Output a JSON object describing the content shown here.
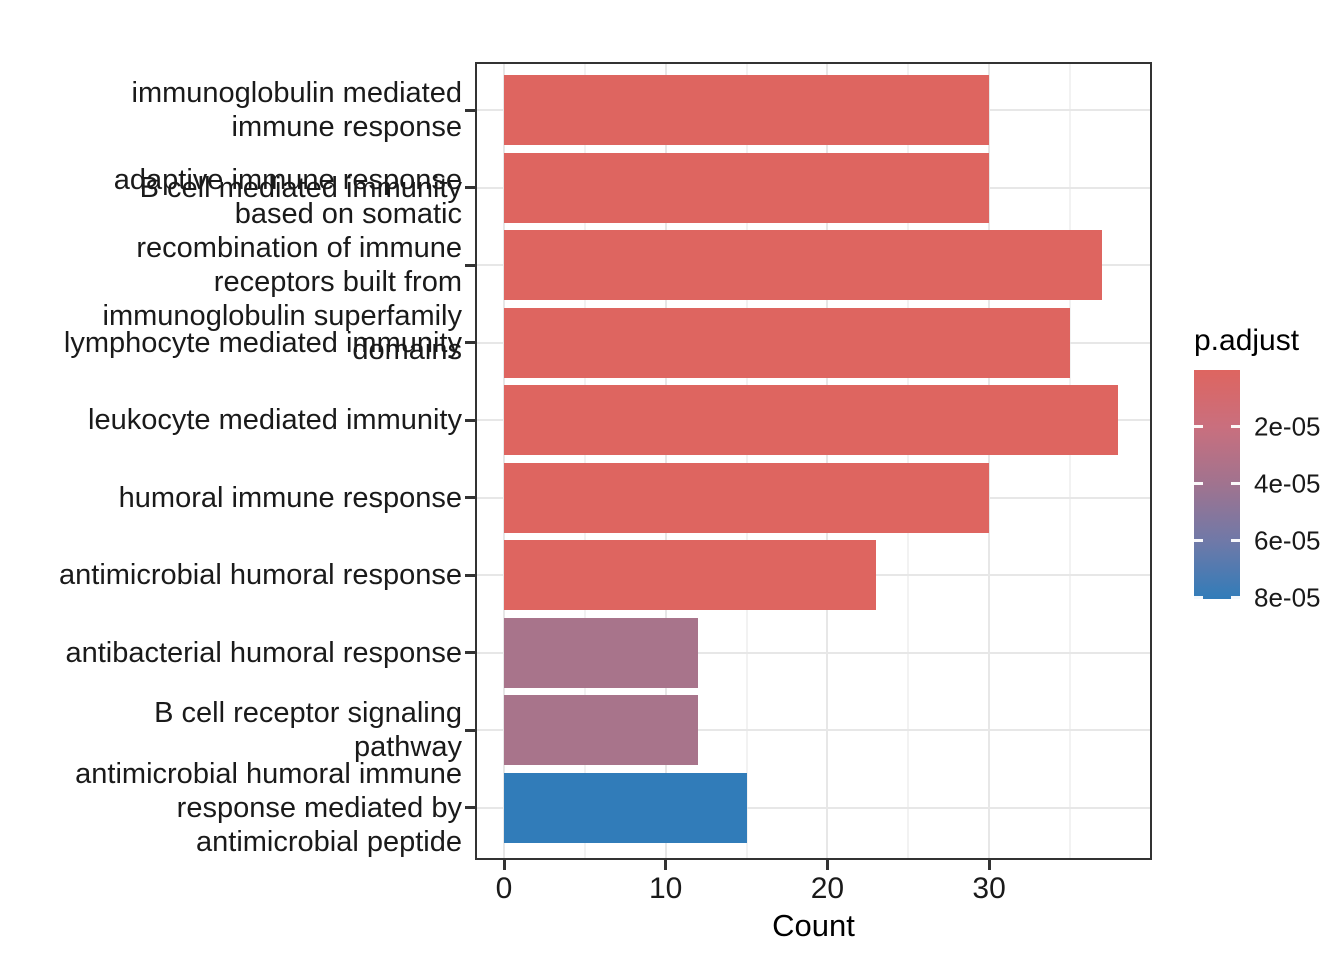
{
  "chart_data": {
    "type": "bar",
    "orientation": "horizontal",
    "title": "",
    "xlabel": "Count",
    "ylabel": "",
    "xlim": [
      0,
      40
    ],
    "x_ticks": [
      0,
      10,
      20,
      30
    ],
    "x_tick_labels": [
      "0",
      "10",
      "20",
      "30"
    ],
    "x_minor_ticks": [
      5,
      15,
      25,
      35
    ],
    "grid": true,
    "categories": [
      "immunoglobulin mediated immune response",
      "B cell mediated immunity",
      "adaptive immune response based on somatic recombination of immune receptors built from immunoglobulin superfamily domains",
      "lymphocyte mediated immunity",
      "leukocyte mediated immunity",
      "humoral immune response",
      "antimicrobial humoral response",
      "antibacterial humoral response",
      "B cell receptor signaling pathway",
      "antimicrobial humoral immune response mediated by antimicrobial peptide"
    ],
    "category_display_lines": [
      [
        "immunoglobulin mediated",
        "immune response"
      ],
      [
        "B cell mediated immunity"
      ],
      [
        "adaptive immune response",
        "based on somatic",
        "recombination of immune",
        "receptors built from",
        "immunoglobulin superfamily",
        "domains"
      ],
      [
        "lymphocyte mediated immunity"
      ],
      [
        "leukocyte mediated immunity"
      ],
      [
        "humoral immune response"
      ],
      [
        "antimicrobial humoral response"
      ],
      [
        "antibacterial humoral response"
      ],
      [
        "B cell receptor signaling",
        "pathway"
      ],
      [
        "antimicrobial humoral immune",
        "response mediated by",
        "antimicrobial peptide"
      ]
    ],
    "values": [
      30,
      30,
      37,
      35,
      38,
      30,
      23,
      12,
      12,
      15
    ],
    "bar_colors": [
      "#DE6560",
      "#DE6560",
      "#DE6560",
      "#DE6560",
      "#DE6560",
      "#DE6560",
      "#DE6560",
      "#A8748B",
      "#A8748B",
      "#317CB9"
    ],
    "legend": {
      "title": "p.adjust",
      "position": "right",
      "gradient_top_to_bottom": [
        "#DE6560",
        "#C96F7E",
        "#A0738F",
        "#6F79A8",
        "#317CB9"
      ],
      "tick_values": [
        2e-05,
        4e-05,
        6e-05,
        8e-05
      ],
      "tick_labels": [
        "2e-05",
        "4e-05",
        "6e-05",
        "8e-05"
      ],
      "range_max": 8.04e-05
    },
    "style": {
      "panel_border_color": "#333333",
      "major_grid_color": "#e7e7e7",
      "minor_grid_color": "#f2f2f2",
      "background": "#ffffff"
    }
  }
}
